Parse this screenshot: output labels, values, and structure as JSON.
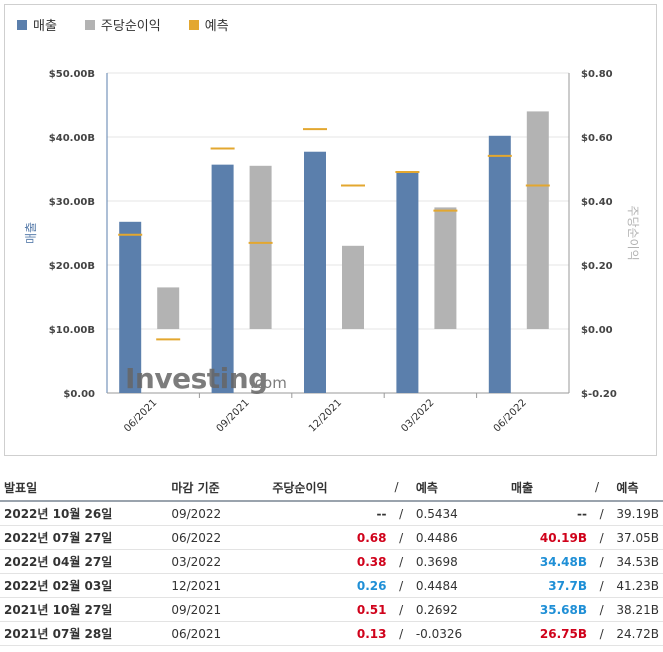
{
  "legend": {
    "items": [
      {
        "label": "매출",
        "color": "#5b7fac"
      },
      {
        "label": "주당순이익",
        "color": "#b3b3b3"
      },
      {
        "label": "예측",
        "color": "#e3a72f"
      }
    ]
  },
  "chart_data": {
    "type": "bar",
    "categories": [
      "06/2021",
      "09/2021",
      "12/2021",
      "03/2022",
      "06/2022"
    ],
    "ylabel": "매출",
    "y2label": "주당순이익",
    "ylim": [
      0,
      50
    ],
    "y2lim": [
      -0.2,
      0.8
    ],
    "yticks": [
      "$0.00",
      "$10.00B",
      "$20.00B",
      "$30.00B",
      "$40.00B",
      "$50.00B"
    ],
    "y2ticks": [
      "$-0.20",
      "$0.00",
      "$0.20",
      "$0.40",
      "$0.60",
      "$0.80"
    ],
    "series": [
      {
        "name": "매출",
        "axis": "left",
        "values": [
          26.75,
          35.68,
          37.7,
          34.48,
          40.19
        ],
        "color": "#5b7fac"
      },
      {
        "name": "주당순이익",
        "axis": "right",
        "values": [
          0.13,
          0.51,
          0.26,
          0.38,
          0.68
        ],
        "color": "#b3b3b3"
      },
      {
        "name": "예측",
        "axis": "left",
        "target": "매출",
        "values": [
          24.72,
          38.21,
          41.23,
          34.53,
          37.05
        ],
        "color": "#e3a72f"
      },
      {
        "name": "예측",
        "axis": "right",
        "target": "주당순이익",
        "values": [
          -0.0326,
          0.2692,
          0.4484,
          0.3698,
          0.4486
        ],
        "color": "#e3a72f"
      }
    ],
    "watermark": {
      "brand": "Investing",
      "suffix": ".com"
    }
  },
  "table": {
    "headers": {
      "date": "발표일",
      "period": "마감 기준",
      "eps": "주당순이익",
      "slash": "/",
      "forecast": "예측",
      "revenue": "매출"
    },
    "rows": [
      {
        "date": "2022년 10월 26일",
        "period": "09/2022",
        "eps": "--",
        "eps_color": "neu",
        "eps_fc": "0.5434",
        "rev": "--",
        "rev_color": "neu",
        "rev_fc": "39.19B"
      },
      {
        "date": "2022년 07월 27일",
        "period": "06/2022",
        "eps": "0.68",
        "eps_color": "pos",
        "eps_fc": "0.4486",
        "rev": "40.19B",
        "rev_color": "pos",
        "rev_fc": "37.05B"
      },
      {
        "date": "2022년 04월 27일",
        "period": "03/2022",
        "eps": "0.38",
        "eps_color": "pos",
        "eps_fc": "0.3698",
        "rev": "34.48B",
        "rev_color": "neg",
        "rev_fc": "34.53B"
      },
      {
        "date": "2022년 02월 03일",
        "period": "12/2021",
        "eps": "0.26",
        "eps_color": "neg",
        "eps_fc": "0.4484",
        "rev": "37.7B",
        "rev_color": "neg",
        "rev_fc": "41.23B"
      },
      {
        "date": "2021년 10월 27일",
        "period": "09/2021",
        "eps": "0.51",
        "eps_color": "pos",
        "eps_fc": "0.2692",
        "rev": "35.68B",
        "rev_color": "neg",
        "rev_fc": "38.21B"
      },
      {
        "date": "2021년 07월 28일",
        "period": "06/2021",
        "eps": "0.13",
        "eps_color": "pos",
        "eps_fc": "-0.0326",
        "rev": "26.75B",
        "rev_color": "pos",
        "rev_fc": "24.72B"
      }
    ]
  }
}
